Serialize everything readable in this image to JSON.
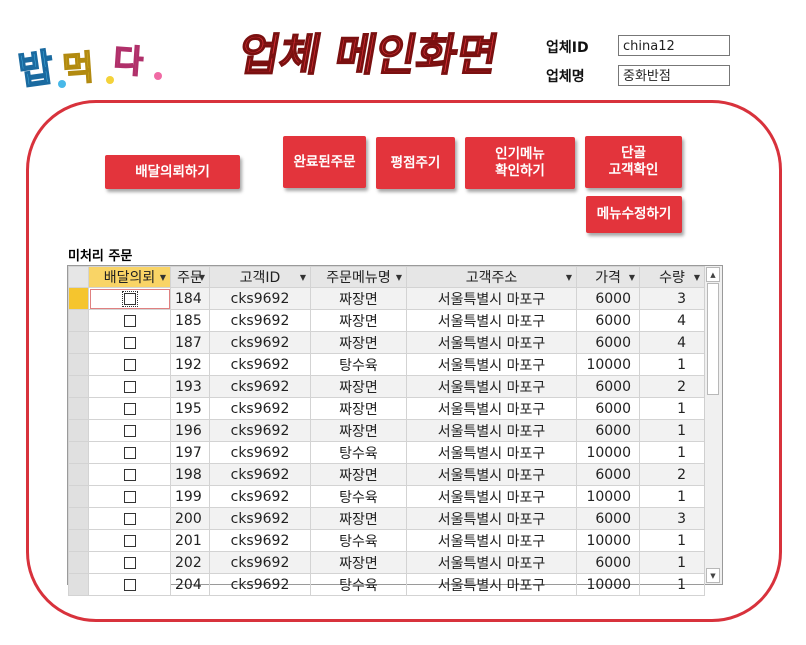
{
  "logo": {
    "text": "밥.먹.다."
  },
  "title": "업체 메인화면",
  "header": {
    "company_id_label": "업체ID",
    "company_id_value": "china12",
    "company_name_label": "업체명",
    "company_name_value": "중화반점"
  },
  "buttons": {
    "delivery_request": "배달의뢰하기",
    "completed_orders": "완료된주문",
    "rating": "평점주기",
    "popular_menu": "인기메뉴\n확인하기",
    "regular_customers": "단골\n고객확인",
    "edit_menu": "메뉴수정하기"
  },
  "section_label": "미처리 주문",
  "grid": {
    "columns": [
      "배달의뢰",
      "주문",
      "고객ID",
      "주문메뉴명",
      "고객주소",
      "가격",
      "수량"
    ],
    "rows": [
      {
        "num": "184",
        "id": "cks9692",
        "menu": "짜장면",
        "addr": "서울특별시 마포구",
        "price": "6000",
        "qty": "3",
        "checked": false
      },
      {
        "num": "185",
        "id": "cks9692",
        "menu": "짜장면",
        "addr": "서울특별시 마포구",
        "price": "6000",
        "qty": "4",
        "checked": false
      },
      {
        "num": "187",
        "id": "cks9692",
        "menu": "짜장면",
        "addr": "서울특별시 마포구",
        "price": "6000",
        "qty": "4",
        "checked": false
      },
      {
        "num": "192",
        "id": "cks9692",
        "menu": "탕수육",
        "addr": "서울특별시 마포구",
        "price": "10000",
        "qty": "1",
        "checked": false
      },
      {
        "num": "193",
        "id": "cks9692",
        "menu": "짜장면",
        "addr": "서울특별시 마포구",
        "price": "6000",
        "qty": "2",
        "checked": false
      },
      {
        "num": "195",
        "id": "cks9692",
        "menu": "짜장면",
        "addr": "서울특별시 마포구",
        "price": "6000",
        "qty": "1",
        "checked": false
      },
      {
        "num": "196",
        "id": "cks9692",
        "menu": "짜장면",
        "addr": "서울특별시 마포구",
        "price": "6000",
        "qty": "1",
        "checked": false
      },
      {
        "num": "197",
        "id": "cks9692",
        "menu": "탕수육",
        "addr": "서울특별시 마포구",
        "price": "10000",
        "qty": "1",
        "checked": false
      },
      {
        "num": "198",
        "id": "cks9692",
        "menu": "짜장면",
        "addr": "서울특별시 마포구",
        "price": "6000",
        "qty": "2",
        "checked": false
      },
      {
        "num": "199",
        "id": "cks9692",
        "menu": "탕수육",
        "addr": "서울특별시 마포구",
        "price": "10000",
        "qty": "1",
        "checked": false
      },
      {
        "num": "200",
        "id": "cks9692",
        "menu": "짜장면",
        "addr": "서울특별시 마포구",
        "price": "6000",
        "qty": "3",
        "checked": false
      },
      {
        "num": "201",
        "id": "cks9692",
        "menu": "탕수육",
        "addr": "서울특별시 마포구",
        "price": "10000",
        "qty": "1",
        "checked": false
      },
      {
        "num": "202",
        "id": "cks9692",
        "menu": "짜장면",
        "addr": "서울특별시 마포구",
        "price": "6000",
        "qty": "1",
        "checked": false
      },
      {
        "num": "204",
        "id": "cks9692",
        "menu": "탕수육",
        "addr": "서울특별시 마포구",
        "price": "10000",
        "qty": "1",
        "checked": false
      }
    ],
    "current_row": 0
  },
  "colors": {
    "accent": "#e3343c",
    "selection": "#a9cfee",
    "record_selector": "#f5c52e"
  }
}
